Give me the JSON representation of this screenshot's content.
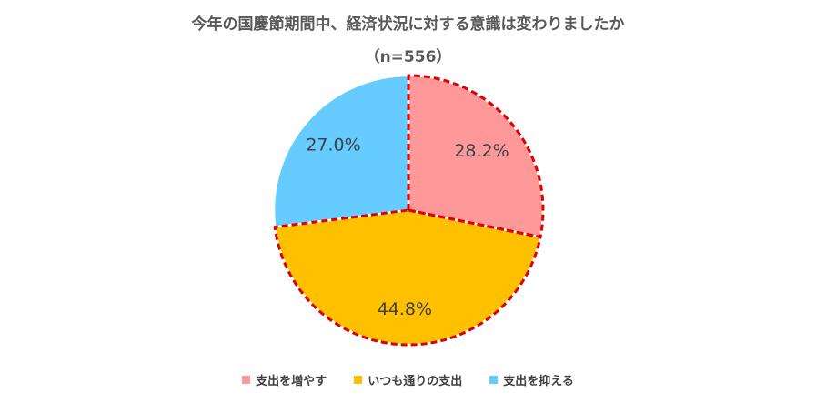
{
  "chart_data": {
    "type": "pie",
    "title": "今年の国慶節期間中、経済状況に対する意識は変わりましたか",
    "subtitle": "（n=556）",
    "categories": [
      "支出を増やす",
      "いつも通りの支出",
      "支出を抑える"
    ],
    "values": [
      28.2,
      44.8,
      27.0
    ],
    "labels": [
      "28.2%",
      "44.8%",
      "27.0%"
    ],
    "colors": [
      "#FF9999",
      "#FFC000",
      "#66CCFF"
    ],
    "highlighted": [
      true,
      true,
      false
    ],
    "highlight_color": "#E00000",
    "start_angle": "12 o'clock",
    "direction": "clockwise",
    "legend_position": "bottom"
  }
}
